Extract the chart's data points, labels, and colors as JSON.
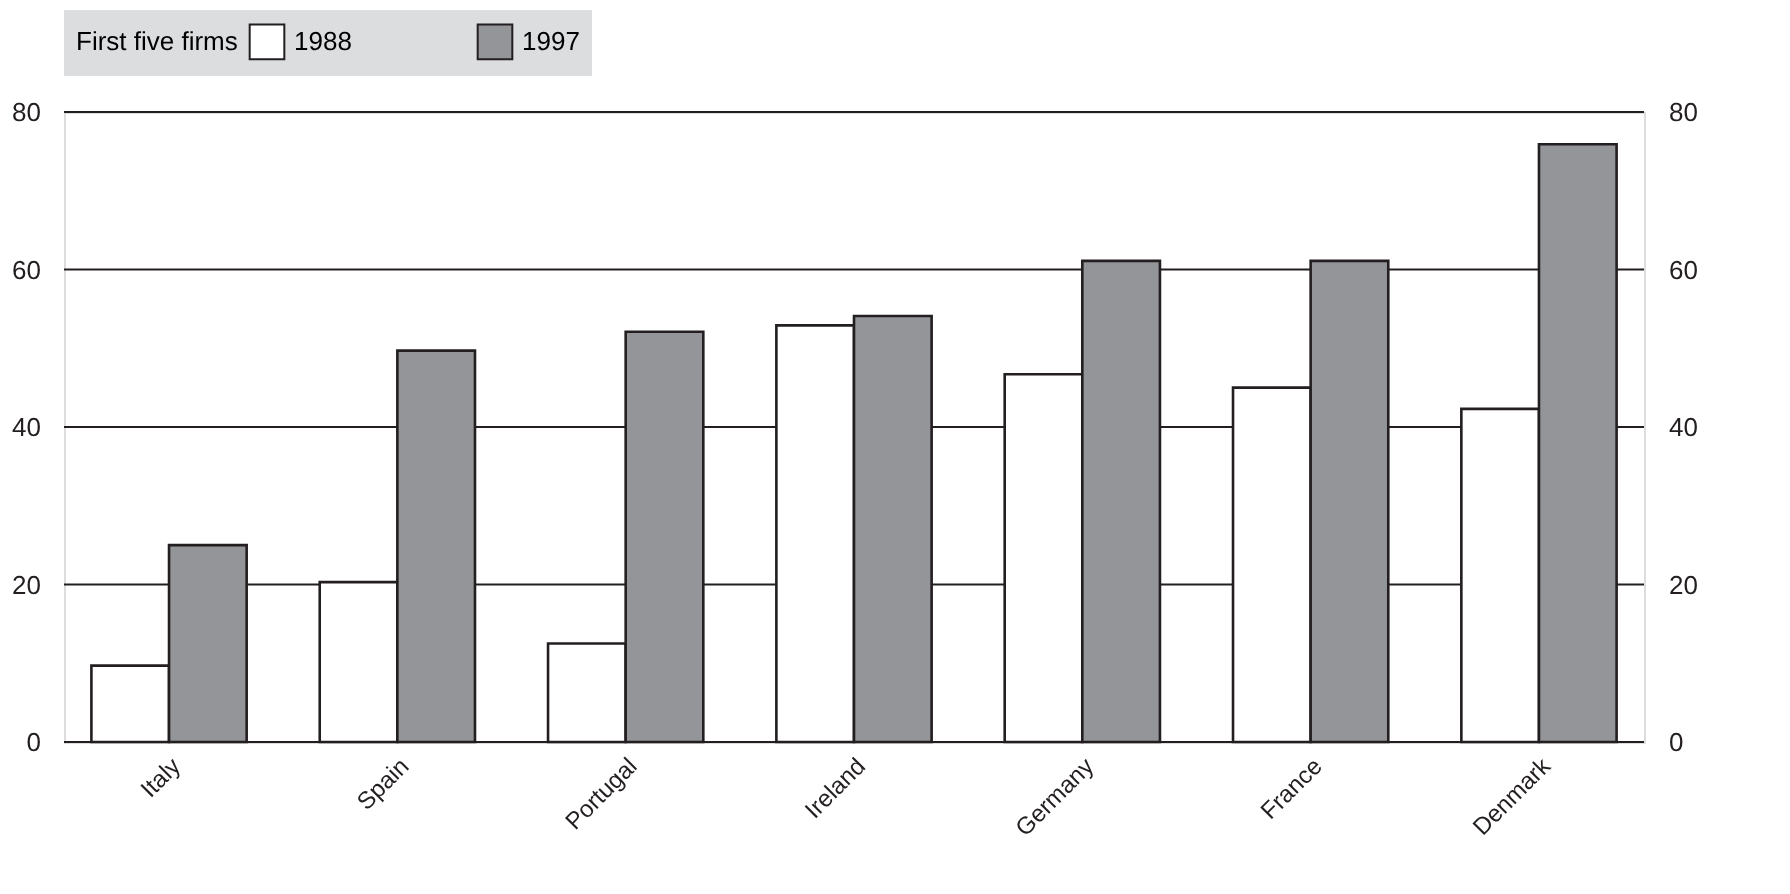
{
  "chart_data": {
    "type": "bar",
    "legend_title": "First five firms",
    "categories": [
      "Italy",
      "Spain",
      "Portugal",
      "Ireland",
      "Germany",
      "France",
      "Denmark"
    ],
    "series": [
      {
        "name": "1988",
        "color": "#ffffff",
        "values": [
          9.7,
          20.3,
          12.5,
          52.9,
          46.7,
          45.0,
          42.3
        ]
      },
      {
        "name": "1997",
        "color": "#939598",
        "values": [
          25.0,
          49.7,
          52.1,
          54.1,
          61.1,
          61.1,
          75.9
        ]
      }
    ],
    "ylim": [
      0,
      80
    ],
    "yticks": [
      0,
      20,
      40,
      60,
      80
    ],
    "y2lim": [
      0,
      80
    ],
    "y2ticks": [
      0,
      20,
      40,
      60,
      80
    ],
    "grid": "y",
    "legend": "top"
  }
}
